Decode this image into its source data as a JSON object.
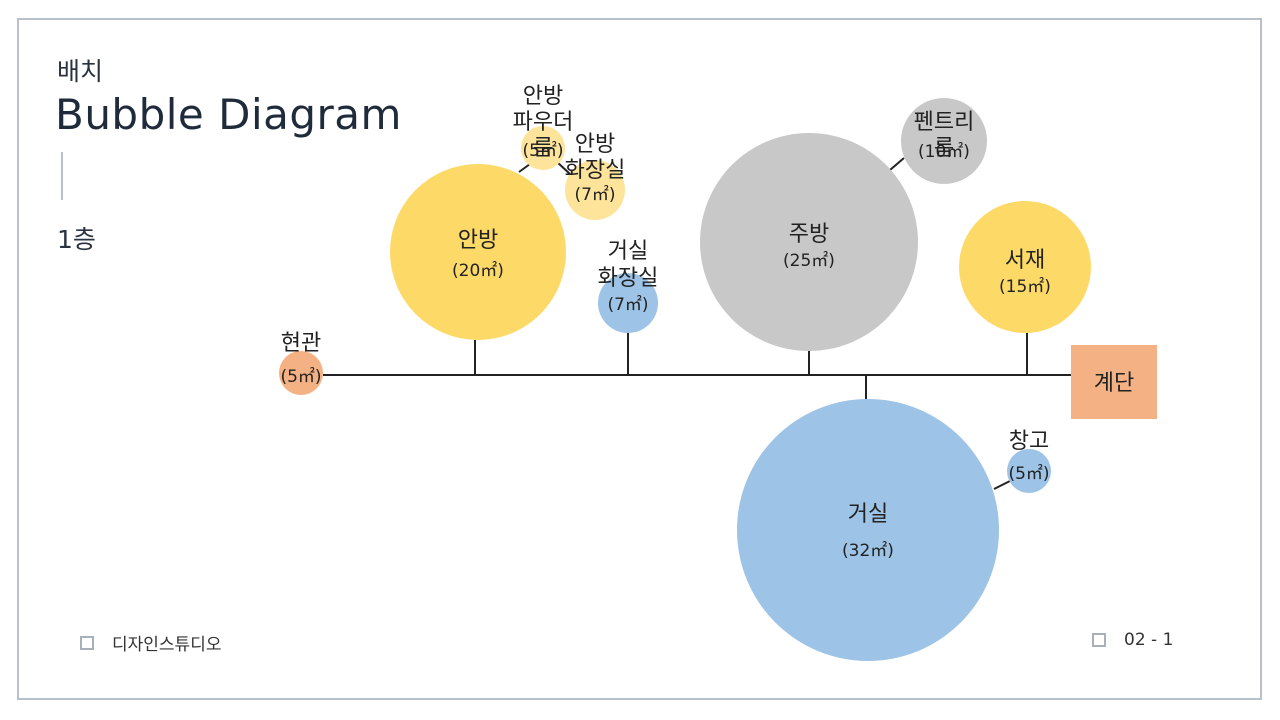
{
  "header": {
    "subtitle": "배치",
    "title": "Bubble Diagram",
    "floor": "1층"
  },
  "footer": {
    "brand": "디자인스튜디오",
    "page": "02 - 1"
  },
  "colors": {
    "yellow": "#fdd967",
    "light_yellow": "#fde49a",
    "blue": "#9dc3e6",
    "gray": "#c8c8c8",
    "orange": "#f4b183",
    "line": "#222222"
  },
  "chart_data": {
    "type": "bubble-diagram",
    "stair": {
      "name": "계단",
      "color": "orange"
    },
    "rooms": [
      {
        "id": "entrance",
        "name": "현관",
        "area": "(5㎡)",
        "area_value": 5,
        "color": "orange"
      },
      {
        "id": "master",
        "name": "안방",
        "area": "(20㎡)",
        "area_value": 20,
        "color": "yellow"
      },
      {
        "id": "master-powder",
        "name": "안방\n파우더\n룸",
        "area": "(5㎡)",
        "area_value": 5,
        "color": "light_yellow"
      },
      {
        "id": "master-bath",
        "name": "안방\n화장실",
        "area": "(7㎡)",
        "area_value": 7,
        "color": "light_yellow"
      },
      {
        "id": "living-bath",
        "name": "거실\n화장실",
        "area": "(7㎡)",
        "area_value": 7,
        "color": "blue"
      },
      {
        "id": "kitchen",
        "name": "주방",
        "area": "(25㎡)",
        "area_value": 25,
        "color": "gray"
      },
      {
        "id": "pantry",
        "name": "펜트리\n룸",
        "area": "(10㎡)",
        "area_value": 10,
        "color": "gray"
      },
      {
        "id": "study",
        "name": "서재",
        "area": "(15㎡)",
        "area_value": 15,
        "color": "yellow"
      },
      {
        "id": "living",
        "name": "거실",
        "area": "(32㎡)",
        "area_value": 32,
        "color": "blue"
      },
      {
        "id": "storage",
        "name": "창고",
        "area": "(5㎡)",
        "area_value": 5,
        "color": "blue"
      }
    ]
  }
}
